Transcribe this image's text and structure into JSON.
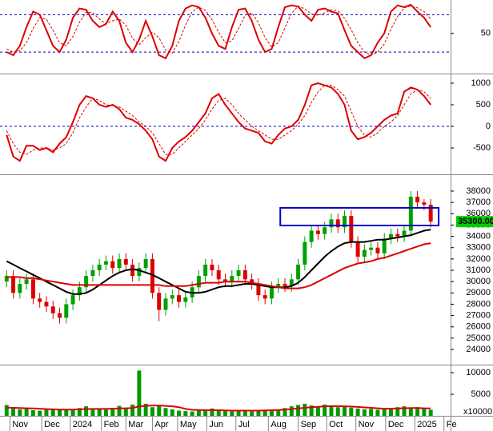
{
  "chart_data": [
    {
      "type": "line",
      "xlim": [
        -1,
        67
      ],
      "ylim": [
        -12,
        101
      ],
      "yticks": [
        50
      ],
      "levels": [
        20,
        80
      ],
      "level_color": "#0000cc",
      "lines": [
        {
          "color": "#dd0000",
          "dash": false,
          "values": [
            20,
            15,
            30,
            60,
            85,
            80,
            55,
            30,
            20,
            40,
            75,
            90,
            88,
            70,
            60,
            65,
            85,
            70,
            35,
            20,
            40,
            70,
            45,
            15,
            10,
            30,
            70,
            90,
            95,
            92,
            75,
            50,
            30,
            25,
            60,
            88,
            90,
            70,
            40,
            20,
            25,
            60,
            92,
            95,
            93,
            80,
            70,
            88,
            90,
            85,
            82,
            55,
            30,
            20,
            10,
            15,
            35,
            50,
            85,
            95,
            92,
            96,
            85,
            75,
            60
          ]
        },
        {
          "color": "#dd0000",
          "dash": true,
          "values": [
            25,
            20,
            22,
            35,
            58,
            75,
            73,
            55,
            35,
            30,
            45,
            68,
            84,
            83,
            73,
            65,
            70,
            73,
            63,
            42,
            32,
            43,
            52,
            43,
            23,
            18,
            37,
            63,
            85,
            92,
            87,
            72,
            52,
            35,
            38,
            58,
            79,
            83,
            67,
            43,
            28,
            35,
            59,
            82,
            94,
            89,
            81,
            79,
            83,
            88,
            86,
            74,
            56,
            35,
            20,
            15,
            20,
            33,
            57,
            77,
            91,
            94,
            91,
            85,
            73
          ]
        }
      ]
    },
    {
      "type": "line",
      "xlim": [
        -1,
        67
      ],
      "ylim": [
        -1056,
        1167
      ],
      "yticks": [
        -500,
        0,
        500,
        1000
      ],
      "levels": [
        0
      ],
      "level_color": "#0000cc",
      "lines": [
        {
          "color": "#dd0000",
          "dash": false,
          "values": [
            -200,
            -700,
            -800,
            -450,
            -450,
            -550,
            -500,
            -600,
            -400,
            -250,
            100,
            500,
            700,
            650,
            500,
            450,
            500,
            400,
            200,
            150,
            50,
            -100,
            -300,
            -700,
            -800,
            -500,
            -350,
            -250,
            -100,
            100,
            300,
            650,
            750,
            500,
            300,
            100,
            -50,
            -100,
            -150,
            -350,
            -400,
            -200,
            -50,
            0,
            150,
            500,
            950,
            1000,
            950,
            900,
            750,
            500,
            -100,
            -300,
            -250,
            -150,
            0,
            150,
            250,
            300,
            800,
            900,
            850,
            700,
            500
          ]
        },
        {
          "color": "#dd0000",
          "dash": true,
          "values": [
            -100,
            -400,
            -600,
            -650,
            -550,
            -500,
            -500,
            -550,
            -500,
            -400,
            -150,
            200,
            450,
            650,
            600,
            500,
            480,
            450,
            350,
            250,
            100,
            0,
            -150,
            -400,
            -650,
            -650,
            -500,
            -350,
            -200,
            -50,
            150,
            400,
            600,
            650,
            500,
            300,
            150,
            0,
            -100,
            -200,
            -300,
            -300,
            -200,
            -100,
            50,
            250,
            550,
            800,
            950,
            950,
            850,
            700,
            350,
            0,
            -200,
            -250,
            -150,
            0,
            100,
            250,
            500,
            750,
            850,
            800,
            650
          ]
        }
      ]
    },
    {
      "type": "candlestick",
      "xlim": [
        -1,
        67
      ],
      "ylim": [
        22730,
        39200
      ],
      "yticks": [
        24000,
        25000,
        26000,
        27000,
        28000,
        29000,
        30000,
        31000,
        32000,
        33000,
        34000,
        35000,
        36000,
        37000,
        38000
      ],
      "up_color": "#00a000",
      "down_color": "#dd0000",
      "open": [
        30000,
        30500,
        29000,
        29800,
        30200,
        28500,
        28200,
        27800,
        27200,
        26800,
        28000,
        28800,
        29500,
        30500,
        31000,
        31500,
        31800,
        31200,
        32000,
        31500,
        30500,
        31200,
        32000,
        29000,
        27500,
        28500,
        28800,
        28200,
        28600,
        29500,
        30500,
        31500,
        31000,
        30200,
        30000,
        30500,
        31000,
        30200,
        29800,
        28800,
        28500,
        29500,
        29800,
        29600,
        30200,
        31500,
        33500,
        34500,
        34200,
        34800,
        35500,
        34800,
        35800,
        33500,
        32200,
        32800,
        33000,
        32500,
        33800,
        34200,
        34000,
        34500,
        37500,
        37000,
        36800
      ],
      "high": [
        31000,
        31000,
        30300,
        30700,
        30700,
        29000,
        28700,
        28300,
        27700,
        28500,
        29300,
        30000,
        31000,
        31500,
        32000,
        32300,
        32300,
        32500,
        32500,
        32000,
        31700,
        32500,
        32500,
        29500,
        29000,
        29300,
        29300,
        29100,
        30000,
        31000,
        32000,
        32000,
        31500,
        30700,
        31000,
        31500,
        31500,
        30700,
        30300,
        29300,
        30000,
        30300,
        30300,
        30700,
        32000,
        34000,
        35000,
        35000,
        35300,
        36000,
        36000,
        36300,
        36300,
        34000,
        33300,
        33500,
        33500,
        34300,
        34700,
        34700,
        35000,
        38000,
        38000,
        37300,
        37300
      ],
      "low": [
        29500,
        28500,
        28500,
        29300,
        28000,
        27700,
        27300,
        26700,
        26300,
        26300,
        27500,
        28300,
        29000,
        30000,
        30500,
        31000,
        30700,
        30700,
        31000,
        30000,
        30000,
        30700,
        28500,
        26500,
        27000,
        28000,
        27700,
        27700,
        28100,
        29000,
        30000,
        30500,
        29700,
        29500,
        29500,
        30000,
        29700,
        29300,
        28300,
        28000,
        28000,
        29000,
        29100,
        29100,
        29700,
        31000,
        33000,
        33700,
        33700,
        34300,
        34300,
        34300,
        33000,
        31700,
        31700,
        32300,
        32000,
        32000,
        33300,
        33500,
        33500,
        34000,
        36500,
        36300,
        34800
      ],
      "close": [
        30500,
        29000,
        29800,
        30200,
        28500,
        28200,
        27800,
        27200,
        26800,
        28000,
        28800,
        29500,
        30500,
        31000,
        31500,
        31800,
        31200,
        32000,
        31500,
        30500,
        31200,
        32000,
        29000,
        27500,
        28500,
        28800,
        28200,
        28600,
        29500,
        30500,
        31500,
        31000,
        30200,
        30000,
        30500,
        31000,
        30200,
        29800,
        28800,
        28500,
        29500,
        29800,
        29600,
        30200,
        31500,
        33500,
        34500,
        34200,
        34800,
        35500,
        34800,
        35800,
        33500,
        32200,
        32800,
        33000,
        32500,
        33800,
        34200,
        34000,
        34500,
        37500,
        37000,
        36800,
        35300
      ],
      "lines": [
        {
          "color": "#000000",
          "dash": false,
          "values": [
            31800,
            31500,
            31200,
            30900,
            30600,
            30300,
            30000,
            29700,
            29400,
            29100,
            28900,
            28900,
            29000,
            29300,
            29700,
            30100,
            30500,
            30800,
            31000,
            31100,
            31000,
            30800,
            30600,
            30300,
            30000,
            29700,
            29400,
            29100,
            29000,
            29000,
            29100,
            29300,
            29500,
            29600,
            29600,
            29700,
            29800,
            29800,
            29700,
            29600,
            29500,
            29500,
            29500,
            29600,
            29900,
            30400,
            31000,
            31600,
            32200,
            32700,
            33100,
            33400,
            33500,
            33500,
            33500,
            33600,
            33700,
            33700,
            33800,
            33900,
            34000,
            34100,
            34300,
            34500,
            34600
          ]
        },
        {
          "color": "#dd0000",
          "dash": false,
          "values": [
            30400,
            30400,
            30400,
            30300,
            30300,
            30200,
            30100,
            30000,
            29900,
            29800,
            29700,
            29700,
            29700,
            29700,
            29700,
            29700,
            29700,
            29700,
            29700,
            29700,
            29700,
            29700,
            29700,
            29700,
            29600,
            29600,
            29600,
            29600,
            29700,
            29800,
            29900,
            29900,
            29900,
            30000,
            30000,
            30000,
            30000,
            29900,
            29800,
            29700,
            29600,
            29500,
            29400,
            29400,
            29400,
            29500,
            29700,
            30000,
            30300,
            30600,
            30900,
            31200,
            31400,
            31600,
            31700,
            31800,
            32000,
            32100,
            32300,
            32500,
            32700,
            32900,
            33100,
            33300,
            33400
          ]
        }
      ],
      "box": {
        "x": [
          41.3,
          65.2
        ],
        "y": [
          34960,
          36520
        ],
        "color": "#0000cc"
      },
      "last_value": {
        "value": 35300,
        "label": "35300.00",
        "color": "#00cc00"
      }
    },
    {
      "type": "bar",
      "xlim": [
        -1,
        67
      ],
      "ylim": [
        0,
        11500
      ],
      "yticks": [
        5000,
        10000
      ],
      "color": "#009900",
      "unit_label": "x10000",
      "values": [
        2500,
        1800,
        1500,
        1700,
        1300,
        1200,
        1500,
        1400,
        1600,
        1300,
        1400,
        1800,
        2200,
        1600,
        1500,
        1400,
        1700,
        2300,
        1800,
        2600,
        10500,
        2800,
        2000,
        2400,
        1800,
        1500,
        1200,
        1100,
        1000,
        1300,
        1500,
        1700,
        1400,
        1100,
        1000,
        1300,
        1200,
        1000,
        1100,
        1400,
        1300,
        1500,
        1800,
        2200,
        2500,
        2800,
        2400,
        2100,
        2600,
        2200,
        2000,
        2300,
        1900,
        1700,
        1500,
        1600,
        1400,
        1500,
        1700,
        2000,
        2200,
        1800,
        2000,
        1600,
        1400
      ],
      "lines": [
        {
          "color": "#dd0000",
          "dash": false,
          "values": [
            1900,
            1850,
            1800,
            1750,
            1700,
            1650,
            1550,
            1500,
            1450,
            1450,
            1450,
            1500,
            1550,
            1600,
            1600,
            1600,
            1650,
            1700,
            1750,
            1800,
            2200,
            2300,
            2400,
            2400,
            2300,
            2200,
            2000,
            1600,
            1400,
            1350,
            1300,
            1300,
            1300,
            1250,
            1200,
            1200,
            1200,
            1200,
            1200,
            1250,
            1300,
            1350,
            1450,
            1550,
            1700,
            1850,
            2000,
            2100,
            2200,
            2250,
            2250,
            2200,
            2150,
            2050,
            1950,
            1850,
            1750,
            1650,
            1650,
            1700,
            1750,
            1800,
            1800,
            1750,
            1700
          ]
        }
      ],
      "xticks": [
        {
          "value": 0.5,
          "label": "Nov"
        },
        {
          "value": 5.3,
          "label": "Dec"
        },
        {
          "value": 9.6,
          "label": "2024"
        },
        {
          "value": 14.3,
          "label": "Feb"
        },
        {
          "value": 18,
          "label": "Mar"
        },
        {
          "value": 22,
          "label": "Apr"
        },
        {
          "value": 25.8,
          "label": "May"
        },
        {
          "value": 30.2,
          "label": "Jun"
        },
        {
          "value": 34.6,
          "label": "Jul"
        },
        {
          "value": 39.5,
          "label": "Aug"
        },
        {
          "value": 44,
          "label": "Sep"
        },
        {
          "value": 48.3,
          "label": "Oct"
        },
        {
          "value": 52.7,
          "label": "Nov"
        },
        {
          "value": 57.2,
          "label": "Dec"
        },
        {
          "value": 61.6,
          "label": "2025"
        },
        {
          "value": 66,
          "label": "Fe"
        }
      ]
    }
  ]
}
